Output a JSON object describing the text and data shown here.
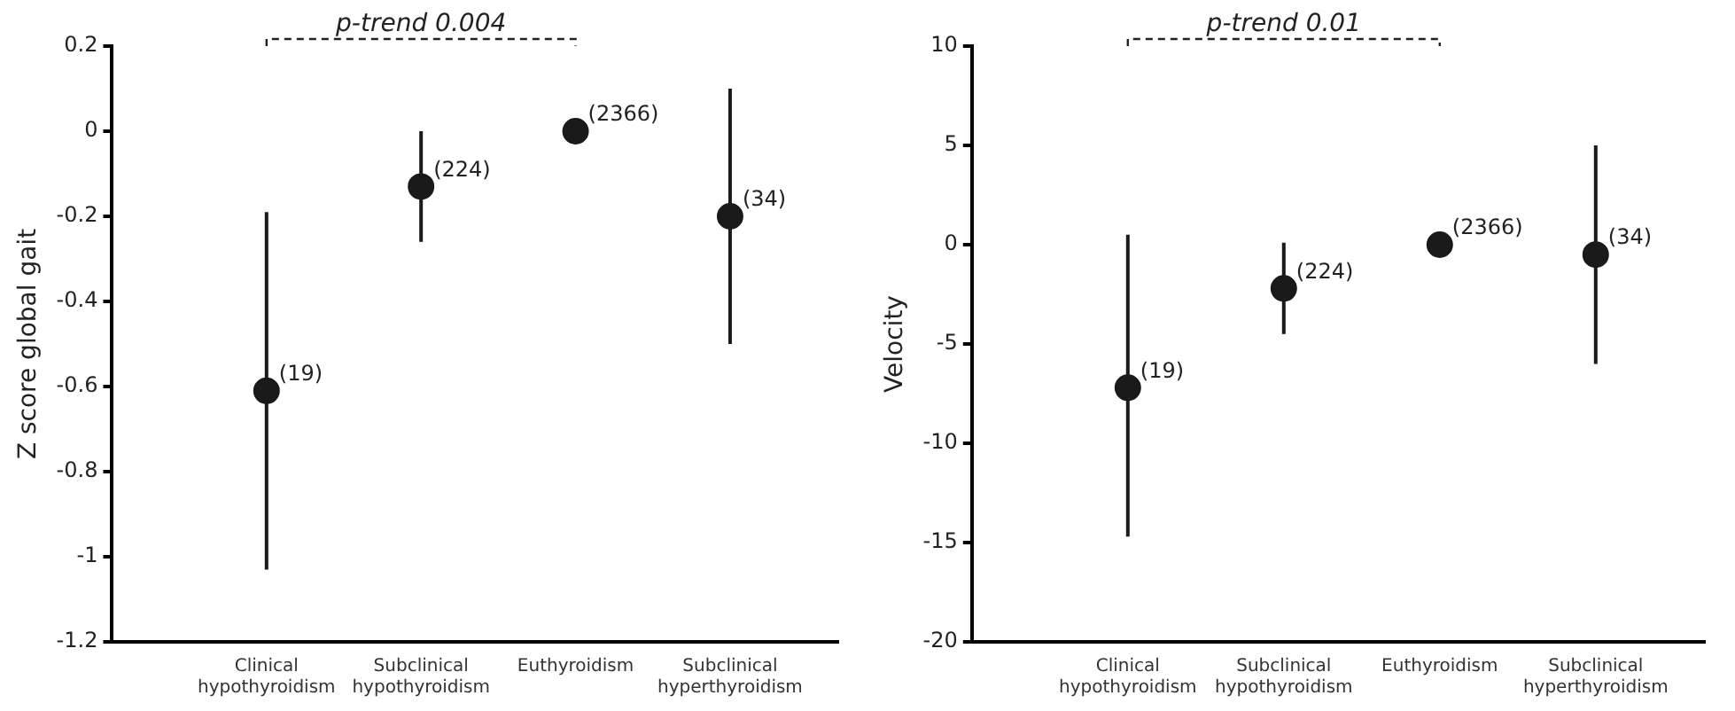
{
  "chart_data": [
    {
      "type": "scatter",
      "ylabel": "Z score global gait",
      "categories": [
        "Clinical hypothyroidism",
        "Subclinical hypothyroidism",
        "Euthyroidism",
        "Subclinical hyperthyroidism"
      ],
      "values": [
        -0.61,
        -0.13,
        0,
        -0.2
      ],
      "errors": [
        [
          -1.03,
          -0.19
        ],
        [
          -0.26,
          0.0
        ],
        null,
        [
          -0.5,
          0.1
        ]
      ],
      "color": "#1a1a1a",
      "marker": "circle",
      "ylim": [
        -1.2,
        0.2
      ],
      "yticks": [
        -1.2,
        -1,
        -0.8,
        -0.6,
        -0.4,
        -0.2,
        0,
        0.2
      ],
      "annotations": [
        "p-trend 0.004",
        {
          "text": "(19)",
          "x": "Clinical hypothyroidism",
          "y": -0.61
        },
        {
          "text": "(224)",
          "x": "Subclinical hypothyroidism",
          "y": -0.13
        },
        {
          "text": "(2366)",
          "x": "Euthyroidism",
          "y": 0
        },
        {
          "text": "(34)",
          "x": "Subclinical hyperthyroidism",
          "y": -0.2
        }
      ]
    },
    {
      "type": "scatter",
      "ylabel": "Velocity",
      "categories": [
        "Clinical hypothyroidism",
        "Subclinical hypothyroidism",
        "Euthyroidism",
        "Subclinical hyperthyroidism"
      ],
      "values": [
        -7.2,
        -2.2,
        0,
        -0.5
      ],
      "errors": [
        [
          -14.7,
          0.5
        ],
        [
          -4.5,
          0.1
        ],
        null,
        [
          -6,
          5
        ]
      ],
      "color": "#1a1a1a",
      "marker": "circle",
      "ylim": [
        -20,
        10
      ],
      "yticks": [
        -20,
        -15,
        -10,
        -5,
        0,
        5,
        10
      ],
      "annotations": [
        "p-trend 0.01",
        {
          "text": "(19)",
          "x": "Clinical hypothyroidism",
          "y": -7.2
        },
        {
          "text": "(224)",
          "x": "Subclinical hypothyroidism",
          "y": -2.2
        },
        {
          "text": "(2366)",
          "x": "Euthyroidism",
          "y": 0
        },
        {
          "text": "(34)",
          "x": "Subclinical hyperthyroidism",
          "y": -0.5
        }
      ]
    }
  ]
}
